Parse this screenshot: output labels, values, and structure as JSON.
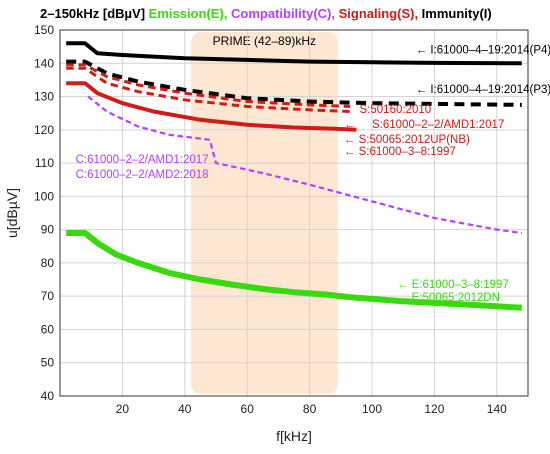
{
  "chart_data": {
    "type": "line",
    "title_parts": [
      {
        "text": "2–150kHz [dBµV]",
        "color": "#000000"
      },
      {
        "text": "Emission(E),",
        "color": "#39d90f"
      },
      {
        "text": "Compatibility(C),",
        "color": "#b340ff"
      },
      {
        "text": "Signaling(S),",
        "color": "#d01b16"
      },
      {
        "text": "Immunity(I)",
        "color": "#000000"
      }
    ],
    "xlabel": "f[kHz]",
    "ylabel": "u[dBµV]",
    "xlim": [
      0,
      150
    ],
    "ylim": [
      40,
      150
    ],
    "xticks": [
      20,
      40,
      60,
      80,
      100,
      120,
      140
    ],
    "yticks": [
      40,
      50,
      60,
      70,
      80,
      90,
      100,
      110,
      120,
      130,
      140,
      150
    ],
    "grid": true,
    "band": {
      "label": "PRIME (42–89)kHz",
      "x0": 42,
      "x1": 89,
      "color": "#fde6d2"
    },
    "series": [
      {
        "key": "I_P4",
        "name": "I:61000–4–19:2014(P4)",
        "color": "#000000",
        "dash": "solid",
        "width": 4,
        "points": [
          [
            2,
            146
          ],
          [
            8,
            146
          ],
          [
            12,
            143
          ],
          [
            20,
            142.5
          ],
          [
            40,
            141.5
          ],
          [
            60,
            141
          ],
          [
            80,
            140.5
          ],
          [
            100,
            140.3
          ],
          [
            120,
            140.1
          ],
          [
            148,
            140
          ]
        ]
      },
      {
        "key": "I_P3",
        "name": "I:61000–4–19:2014(P3)",
        "color": "#000000",
        "dash": "dashed",
        "width": 4,
        "points": [
          [
            2,
            140.5
          ],
          [
            8,
            140.5
          ],
          [
            15,
            137
          ],
          [
            25,
            134.5
          ],
          [
            40,
            132
          ],
          [
            60,
            129.5
          ],
          [
            80,
            128.5
          ],
          [
            100,
            128
          ],
          [
            120,
            127.8
          ],
          [
            148,
            127.5
          ]
        ]
      },
      {
        "key": "S_50160",
        "name": "S:50160:2010",
        "color": "#d01b16",
        "dash": "dashed",
        "width": 3,
        "points": [
          [
            2,
            139.5
          ],
          [
            8,
            139.5
          ],
          [
            15,
            136
          ],
          [
            25,
            133.5
          ],
          [
            40,
            131
          ],
          [
            60,
            128.5
          ],
          [
            80,
            127.5
          ],
          [
            93,
            127
          ]
        ]
      },
      {
        "key": "S_AMD1",
        "name": "S:61000–2–2/AMD1:2017",
        "color": "#d01b16",
        "dash": "dashed",
        "width": 3,
        "points": [
          [
            2,
            138.5
          ],
          [
            8,
            138.5
          ],
          [
            15,
            134
          ],
          [
            25,
            131.5
          ],
          [
            40,
            129
          ],
          [
            60,
            127
          ],
          [
            80,
            126
          ],
          [
            93,
            125.5
          ]
        ]
      },
      {
        "key": "S_UPNB",
        "name": "S:50065:2012UP(NB)",
        "color": "#d01b16",
        "dash": "solid",
        "width": 4,
        "points": [
          [
            2,
            134
          ],
          [
            8,
            134
          ],
          [
            12,
            131
          ],
          [
            20,
            128
          ],
          [
            30,
            125.5
          ],
          [
            45,
            123
          ],
          [
            60,
            121.5
          ],
          [
            75,
            120.7
          ],
          [
            88,
            120.3
          ],
          [
            95,
            120
          ]
        ]
      },
      {
        "key": "S_61000_3_8",
        "name": "S:61000–3–8:1997",
        "color": "#d01b16",
        "dash": "solid",
        "width": 0,
        "points": []
      },
      {
        "key": "C_AMD1",
        "name": "C:61000–2–2/AMD1:2017",
        "color": "#b340ff",
        "dash": "dashed",
        "width": 2.2,
        "points": [
          [
            9,
            130
          ],
          [
            15,
            125.5
          ],
          [
            25,
            121
          ],
          [
            35,
            118.5
          ],
          [
            48,
            117
          ],
          [
            50,
            110
          ],
          [
            65,
            107
          ],
          [
            80,
            103.5
          ],
          [
            100,
            98.5
          ],
          [
            120,
            93.5
          ],
          [
            140,
            90
          ],
          [
            148,
            89
          ]
        ]
      },
      {
        "key": "C_AMD2",
        "name": "C:61000–2–2/AMD2:2018",
        "color": "#b340ff",
        "dash": "dashed",
        "width": 0,
        "points": []
      },
      {
        "key": "E_3_8",
        "name": "E:61000–3–8:1997",
        "color": "#39d90f",
        "dash": "solid",
        "width": 6,
        "points": [
          [
            2,
            89
          ],
          [
            8,
            89
          ],
          [
            12,
            86
          ],
          [
            18,
            82.5
          ],
          [
            25,
            80
          ],
          [
            35,
            77
          ],
          [
            45,
            75
          ],
          [
            55,
            73.5
          ],
          [
            65,
            72.2
          ],
          [
            75,
            71.2
          ],
          [
            85,
            70.5
          ],
          [
            95,
            69.5
          ],
          [
            110,
            68.5
          ],
          [
            130,
            67.5
          ],
          [
            148,
            66.5
          ]
        ]
      },
      {
        "key": "E_50065",
        "name": "E:50065:2012DN",
        "color": "#39d90f",
        "dash": "solid",
        "width": 0,
        "points": []
      }
    ],
    "annotations": [
      {
        "text": "←   I:61000–4–19:2014(P4)",
        "color": "#000000",
        "x": 114,
        "y": 143
      },
      {
        "text": "←   I:61000–4–19:2014(P3)",
        "color": "#000000",
        "x": 114,
        "y": 131
      },
      {
        "text": "S:50160:2010",
        "color": "#d01b16",
        "x": 96,
        "y": 125
      },
      {
        "text": "←",
        "color": "#d01b16",
        "x": 91,
        "y": 120.5
      },
      {
        "text": "S:61000–2–2/AMD1:2017",
        "color": "#d01b16",
        "x": 100,
        "y": 120.5
      },
      {
        "text": "← S:50065:2012UP(NB)",
        "color": "#d01b16",
        "x": 91,
        "y": 116
      },
      {
        "text": "← S:61000–3–8:1997",
        "color": "#d01b16",
        "x": 91,
        "y": 112.5
      },
      {
        "text": "C:61000–2–2/AMD1:2017",
        "color": "#b340ff",
        "x": 5,
        "y": 110
      },
      {
        "text": "C:61000–2–2/AMD2:2018",
        "color": "#b340ff",
        "x": 5,
        "y": 105.5
      },
      {
        "text": "←   E:61000–3–8:1997",
        "color": "#39d90f",
        "x": 108,
        "y": 72.5
      },
      {
        "text": "←   E:50065:2012DN",
        "color": "#39d90f",
        "x": 108,
        "y": 68.5
      }
    ]
  }
}
